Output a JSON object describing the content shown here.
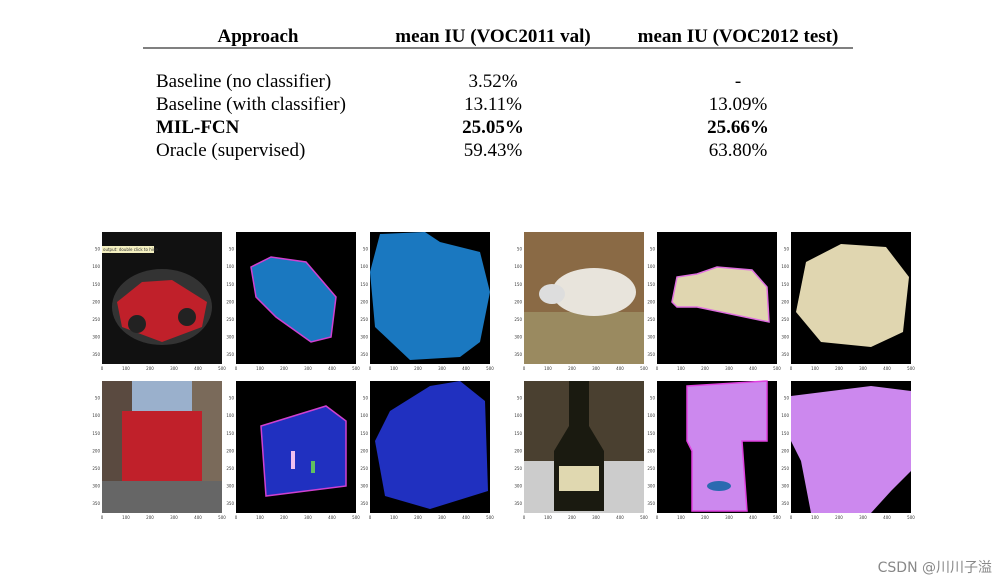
{
  "table": {
    "headers": [
      "Approach",
      "mean IU (VOC2011 val)",
      "mean IU (VOC2012 test)"
    ],
    "rows": [
      [
        "Baseline (no classifier)",
        "3.52%",
        "-"
      ],
      [
        "Baseline (with classifier)",
        "13.11%",
        "13.09%"
      ],
      [
        "MIL-FCN",
        "25.05%",
        "25.66%"
      ],
      [
        "Oracle (supervised)",
        "59.43%",
        "63.80%"
      ]
    ],
    "bold_row": 2
  },
  "figure": {
    "tooltip": "output: double click to hide",
    "x_ticks": [
      "0",
      "100",
      "200",
      "300",
      "400",
      "500"
    ],
    "y_ticks": [
      "50",
      "100",
      "150",
      "200",
      "250",
      "300",
      "350"
    ]
  },
  "watermark": "CSDN @川川子溢"
}
